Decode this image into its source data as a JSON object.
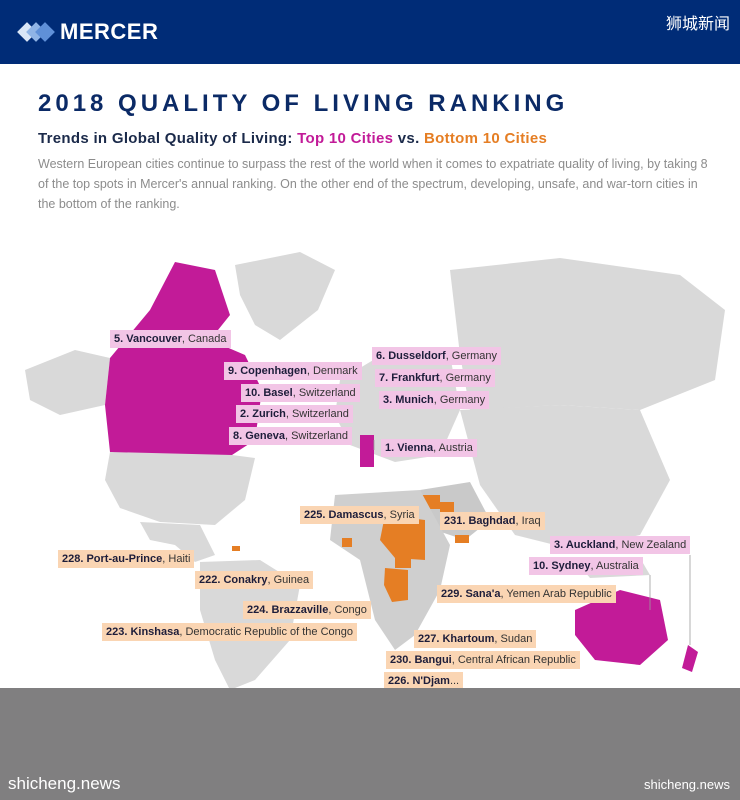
{
  "header": {
    "brand": "MERCER",
    "cn_label": "狮城新闻"
  },
  "title": "2018 QUALITY OF LIVING RANKING",
  "subtitle": {
    "prefix": "Trends in Global Quality of Living: ",
    "top": "Top 10 Cities",
    "vs": " vs. ",
    "bottom": "Bottom 10 Cities"
  },
  "description": "Western European cities continue to surpass the rest of the world when it comes to expatriate quality of living, by taking 8 of the top spots in Mercer's annual ranking. On the other end of the spectrum, developing, unsafe, and war-torn cities in the bottom of the ranking.",
  "colors": {
    "top": "#c21b98",
    "bottom": "#e57e24",
    "land": "#d9d9d9",
    "header": "#002c77"
  },
  "top_cities": [
    {
      "rank_city": "5. Vancouver",
      "country": ", Canada"
    },
    {
      "rank_city": "9. Copenhagen",
      "country": ", Denmark"
    },
    {
      "rank_city": "10. Basel",
      "country": ", Switzerland"
    },
    {
      "rank_city": "2. Zurich",
      "country": ", Switzerland"
    },
    {
      "rank_city": "8. Geneva",
      "country": ", Switzerland"
    },
    {
      "rank_city": "6. Dusseldorf",
      "country": ", Germany"
    },
    {
      "rank_city": "7. Frankfurt",
      "country": ", Germany"
    },
    {
      "rank_city": "3. Munich",
      "country": ", Germany"
    },
    {
      "rank_city": "1. Vienna",
      "country": ", Austria"
    },
    {
      "rank_city": "3. Auckland",
      "country": ", New Zealand"
    },
    {
      "rank_city": "10. Sydney",
      "country": ", Australia"
    }
  ],
  "bottom_cities": [
    {
      "rank_city": "225. Damascus",
      "country": ", Syria"
    },
    {
      "rank_city": "231. Baghdad",
      "country": ", Iraq"
    },
    {
      "rank_city": "228. Port-au-Prince",
      "country": ", Haiti"
    },
    {
      "rank_city": "222. Conakry",
      "country": ", Guinea"
    },
    {
      "rank_city": "229. Sana'a",
      "country": ", Yemen Arab Republic"
    },
    {
      "rank_city": "224. Brazzaville",
      "country": ", Congo"
    },
    {
      "rank_city": "223. Kinshasa",
      "country": ", Democratic Republic of the Congo"
    },
    {
      "rank_city": "227. Khartoum",
      "country": ", Sudan"
    },
    {
      "rank_city": "230. Bangui",
      "country": ", Central African Republic"
    },
    {
      "rank_city": "226. N'Djam",
      "country": "..."
    }
  ],
  "footer": {
    "watermark_left": "shicheng.news",
    "watermark_right": "shicheng.news"
  }
}
